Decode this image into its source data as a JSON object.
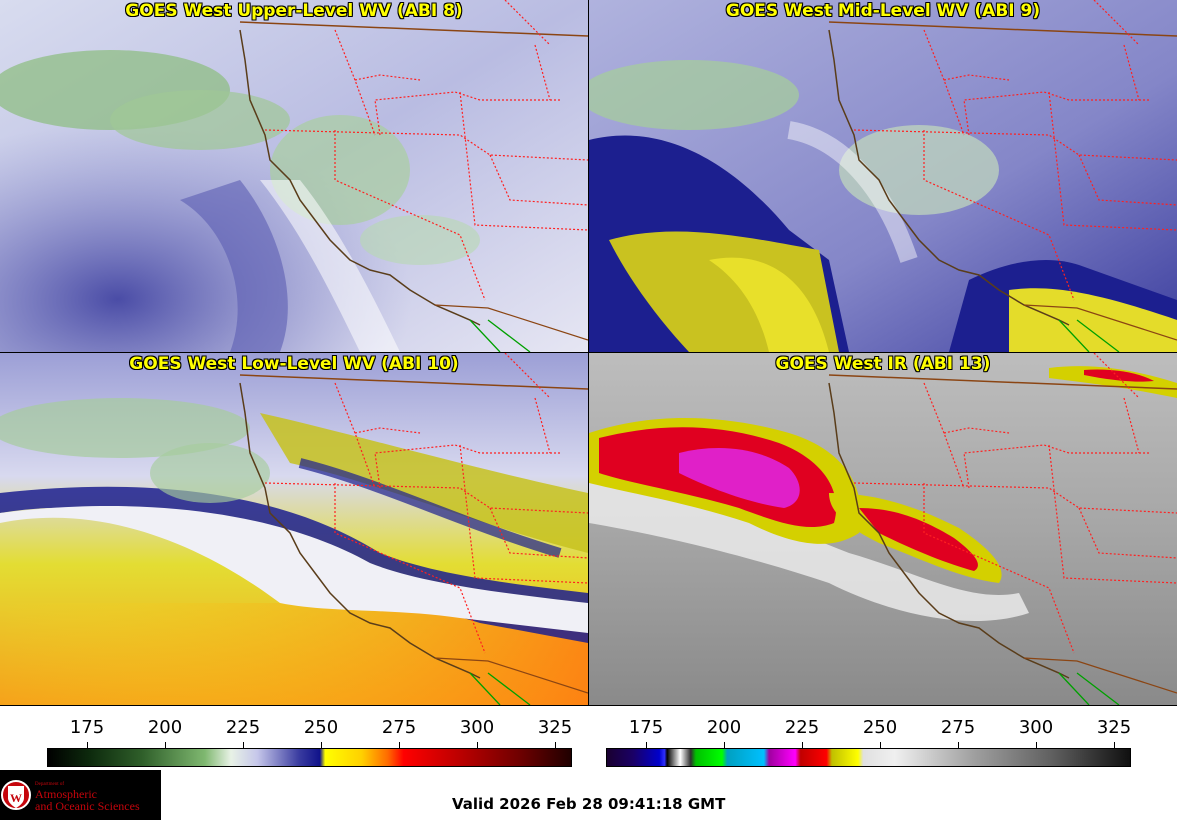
{
  "panels": {
    "upper": {
      "title": "GOES West Upper-Level WV (ABI 8)"
    },
    "mid": {
      "title": "GOES West Mid-Level WV (ABI 9)"
    },
    "low": {
      "title": "GOES West Low-Level WV (ABI 10)"
    },
    "ir": {
      "title": "GOES West IR (ABI 13)"
    }
  },
  "colorbars": {
    "wv": {
      "ticks": [
        "175",
        "200",
        "225",
        "250",
        "275",
        "300",
        "325"
      ]
    },
    "ir": {
      "ticks": [
        "175",
        "200",
        "225",
        "250",
        "275",
        "300",
        "325"
      ]
    }
  },
  "logo": {
    "department": "Department of",
    "line1": "Atmospheric",
    "line2": "and Oceanic Sciences"
  },
  "valid_time": "Valid 2026 Feb 28 09:41:18 GMT",
  "colors": {
    "title_text": "#ffff00",
    "state_borders": "#ff2020",
    "country_border": "#8b4513",
    "mexico_border": "#00a000",
    "logo_red": "#c5050c"
  }
}
